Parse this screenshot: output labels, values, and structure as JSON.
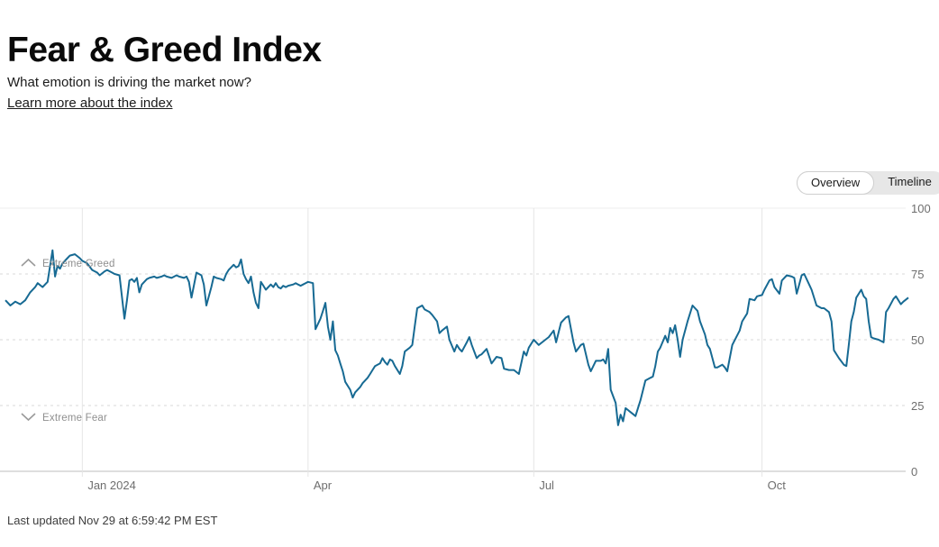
{
  "header": {
    "title": "Fear & Greed Index",
    "subtitle": "What emotion is driving the market now?",
    "link_label": "Learn more about the index"
  },
  "toggle": {
    "options": [
      "Overview",
      "Timeline"
    ],
    "selected": "Overview"
  },
  "footer": {
    "last_updated": "Last updated Nov 29 at 6:59:42 PM EST"
  },
  "chart_data": {
    "type": "line",
    "title": "Fear & Greed Index over time",
    "line_color": "#176a93",
    "grid_color_solid": "#ececec",
    "grid_color_dashed": "#d9d9d9",
    "axis_color": "#c9c9c9",
    "x_axis": {
      "start_date": "2023-12-01",
      "end_date": "2024-11-29",
      "domain_days": [
        0,
        364
      ],
      "tick_days": [
        31,
        122,
        213,
        305
      ],
      "tick_labels": [
        "Jan 2024",
        "Apr",
        "Jul",
        "Oct"
      ]
    },
    "y_axis": {
      "range": [
        0,
        100
      ],
      "ticks": [
        0,
        25,
        50,
        75,
        100
      ],
      "tick_labels": [
        "0",
        "25",
        "50",
        "75",
        "100"
      ],
      "side": "right"
    },
    "annotations": [
      {
        "label": "Extreme Greed",
        "icon": "chevron-up-icon",
        "near_value": 78
      },
      {
        "label": "Extreme Fear",
        "icon": "chevron-down-icon",
        "near_value": 20
      }
    ],
    "series_name": "Fear & Greed score",
    "points": [
      [
        0,
        65
      ],
      [
        2,
        63
      ],
      [
        4,
        64.5
      ],
      [
        6,
        63.5
      ],
      [
        8,
        65
      ],
      [
        10,
        68
      ],
      [
        12,
        70
      ],
      [
        13,
        71.5
      ],
      [
        15,
        70
      ],
      [
        16,
        71
      ],
      [
        17,
        72
      ],
      [
        19,
        84
      ],
      [
        20,
        74
      ],
      [
        21,
        78
      ],
      [
        22,
        77
      ],
      [
        23,
        79
      ],
      [
        25,
        81
      ],
      [
        26,
        82
      ],
      [
        28,
        82.5
      ],
      [
        30,
        81
      ],
      [
        31,
        80
      ],
      [
        33,
        79
      ],
      [
        35,
        76.5
      ],
      [
        37,
        75.5
      ],
      [
        38,
        74.5
      ],
      [
        40,
        76
      ],
      [
        41,
        76.5
      ],
      [
        43,
        75.5
      ],
      [
        44,
        75
      ],
      [
        46,
        74.5
      ],
      [
        48,
        58
      ],
      [
        49,
        65
      ],
      [
        50,
        72.5
      ],
      [
        51,
        73
      ],
      [
        52,
        72
      ],
      [
        53,
        73.5
      ],
      [
        54,
        68
      ],
      [
        55,
        71
      ],
      [
        57,
        73
      ],
      [
        58,
        73.5
      ],
      [
        60,
        74
      ],
      [
        61,
        73.5
      ],
      [
        63,
        74
      ],
      [
        64,
        74.5
      ],
      [
        65,
        74
      ],
      [
        67,
        73.5
      ],
      [
        69,
        74.5
      ],
      [
        70,
        74
      ],
      [
        72,
        73.5
      ],
      [
        73,
        74
      ],
      [
        74,
        72
      ],
      [
        75,
        66
      ],
      [
        77,
        75.5
      ],
      [
        79,
        74.5
      ],
      [
        80,
        71
      ],
      [
        81,
        63
      ],
      [
        83,
        70
      ],
      [
        84,
        74
      ],
      [
        85,
        73.5
      ],
      [
        87,
        73
      ],
      [
        88,
        72.5
      ],
      [
        89,
        75
      ],
      [
        90,
        76.5
      ],
      [
        92,
        78.5
      ],
      [
        93,
        77.5
      ],
      [
        94,
        78
      ],
      [
        95,
        80.5
      ],
      [
        96,
        75
      ],
      [
        97,
        73
      ],
      [
        98,
        71.5
      ],
      [
        99,
        74
      ],
      [
        100,
        68
      ],
      [
        101,
        64
      ],
      [
        102,
        62
      ],
      [
        103,
        72
      ],
      [
        104,
        70.5
      ],
      [
        105,
        69
      ],
      [
        107,
        71
      ],
      [
        108,
        70
      ],
      [
        109,
        71.5
      ],
      [
        110,
        70
      ],
      [
        111,
        69.5
      ],
      [
        112,
        70.5
      ],
      [
        113,
        70
      ],
      [
        114,
        70.5
      ],
      [
        116,
        71
      ],
      [
        117,
        71.5
      ],
      [
        118,
        71
      ],
      [
        119,
        70.5
      ],
      [
        120,
        71
      ],
      [
        121,
        71.5
      ],
      [
        122,
        72
      ],
      [
        124,
        71.5
      ],
      [
        125,
        54
      ],
      [
        127,
        58
      ],
      [
        128,
        61
      ],
      [
        129,
        64
      ],
      [
        130,
        55
      ],
      [
        131,
        50
      ],
      [
        132,
        57
      ],
      [
        133,
        46
      ],
      [
        134,
        44
      ],
      [
        135,
        41
      ],
      [
        136,
        38
      ],
      [
        137,
        34
      ],
      [
        139,
        31
      ],
      [
        140,
        28
      ],
      [
        141,
        30
      ],
      [
        143,
        32
      ],
      [
        144,
        33.5
      ],
      [
        145,
        34.5
      ],
      [
        146,
        35.5
      ],
      [
        147,
        37
      ],
      [
        148,
        38.5
      ],
      [
        149,
        40
      ],
      [
        151,
        41
      ],
      [
        152,
        43
      ],
      [
        153,
        41.5
      ],
      [
        154,
        40.5
      ],
      [
        155,
        42.5
      ],
      [
        156,
        42
      ],
      [
        157,
        40
      ],
      [
        159,
        37
      ],
      [
        160,
        40
      ],
      [
        161,
        45.5
      ],
      [
        163,
        47
      ],
      [
        164,
        48
      ],
      [
        165,
        55
      ],
      [
        166,
        62
      ],
      [
        168,
        63
      ],
      [
        169,
        61.5
      ],
      [
        171,
        60.5
      ],
      [
        172,
        59.5
      ],
      [
        174,
        57
      ],
      [
        175,
        52.5
      ],
      [
        176,
        53.5
      ],
      [
        178,
        55
      ],
      [
        179,
        50
      ],
      [
        181,
        45.5
      ],
      [
        182,
        48
      ],
      [
        183,
        46.5
      ],
      [
        184,
        45.5
      ],
      [
        186,
        49
      ],
      [
        187,
        51
      ],
      [
        188,
        48
      ],
      [
        190,
        43
      ],
      [
        191,
        44
      ],
      [
        192,
        44.5
      ],
      [
        194,
        46.5
      ],
      [
        196,
        41
      ],
      [
        198,
        43.5
      ],
      [
        200,
        43
      ],
      [
        201,
        39
      ],
      [
        203,
        38.5
      ],
      [
        205,
        38.5
      ],
      [
        207,
        37
      ],
      [
        209,
        45.5
      ],
      [
        210,
        44
      ],
      [
        211,
        47
      ],
      [
        213,
        50
      ],
      [
        215,
        48
      ],
      [
        217,
        49.5
      ],
      [
        219,
        51
      ],
      [
        221,
        53.5
      ],
      [
        222,
        49
      ],
      [
        224,
        56.5
      ],
      [
        226,
        58.5
      ],
      [
        227,
        59
      ],
      [
        229,
        49
      ],
      [
        230,
        45.5
      ],
      [
        232,
        48
      ],
      [
        233,
        48.5
      ],
      [
        235,
        40.5
      ],
      [
        236,
        38
      ],
      [
        238,
        42
      ],
      [
        240,
        42
      ],
      [
        241,
        42.5
      ],
      [
        242,
        41
      ],
      [
        243,
        46.5
      ],
      [
        244,
        31
      ],
      [
        246,
        26
      ],
      [
        247,
        17.5
      ],
      [
        248,
        21.5
      ],
      [
        249,
        19
      ],
      [
        250,
        24
      ],
      [
        252,
        22.5
      ],
      [
        254,
        21
      ],
      [
        256,
        27
      ],
      [
        258,
        34.5
      ],
      [
        260,
        35.5
      ],
      [
        261,
        36
      ],
      [
        262,
        40
      ],
      [
        263,
        45.5
      ],
      [
        264,
        47
      ],
      [
        266,
        51.5
      ],
      [
        267,
        49
      ],
      [
        268,
        54.5
      ],
      [
        269,
        52.5
      ],
      [
        270,
        55.5
      ],
      [
        271,
        50
      ],
      [
        272,
        43.5
      ],
      [
        273,
        50
      ],
      [
        275,
        57
      ],
      [
        277,
        63
      ],
      [
        279,
        61
      ],
      [
        280,
        57
      ],
      [
        282,
        52
      ],
      [
        283,
        48
      ],
      [
        284,
        46.5
      ],
      [
        286,
        39.5
      ],
      [
        287,
        39.5
      ],
      [
        289,
        40.5
      ],
      [
        290,
        39.5
      ],
      [
        291,
        38
      ],
      [
        293,
        48
      ],
      [
        296,
        53.5
      ],
      [
        297,
        57
      ],
      [
        299,
        60
      ],
      [
        300,
        65.5
      ],
      [
        302,
        65
      ],
      [
        303,
        66.5
      ],
      [
        305,
        67
      ],
      [
        306,
        69
      ],
      [
        308,
        72.5
      ],
      [
        309,
        73
      ],
      [
        310,
        70
      ],
      [
        312,
        67.5
      ],
      [
        313,
        72.5
      ],
      [
        315,
        74.5
      ],
      [
        317,
        74
      ],
      [
        318,
        73.5
      ],
      [
        319,
        67.5
      ],
      [
        320,
        71
      ],
      [
        321,
        74.5
      ],
      [
        322,
        75
      ],
      [
        324,
        71
      ],
      [
        325,
        69
      ],
      [
        327,
        63
      ],
      [
        329,
        62
      ],
      [
        330,
        62
      ],
      [
        332,
        60.5
      ],
      [
        333,
        57
      ],
      [
        334,
        46
      ],
      [
        336,
        43
      ],
      [
        338,
        40.5
      ],
      [
        339,
        40
      ],
      [
        340,
        48
      ],
      [
        341,
        57
      ],
      [
        342,
        60.5
      ],
      [
        343,
        66
      ],
      [
        345,
        69
      ],
      [
        346,
        66.5
      ],
      [
        347,
        65.5
      ],
      [
        348,
        57
      ],
      [
        349,
        51
      ],
      [
        350,
        50.5
      ],
      [
        352,
        50
      ],
      [
        354,
        49
      ],
      [
        355,
        60.5
      ],
      [
        356,
        62
      ],
      [
        358,
        65.5
      ],
      [
        359,
        66.5
      ],
      [
        361,
        63.5
      ],
      [
        362,
        64.5
      ],
      [
        364,
        66
      ]
    ]
  }
}
